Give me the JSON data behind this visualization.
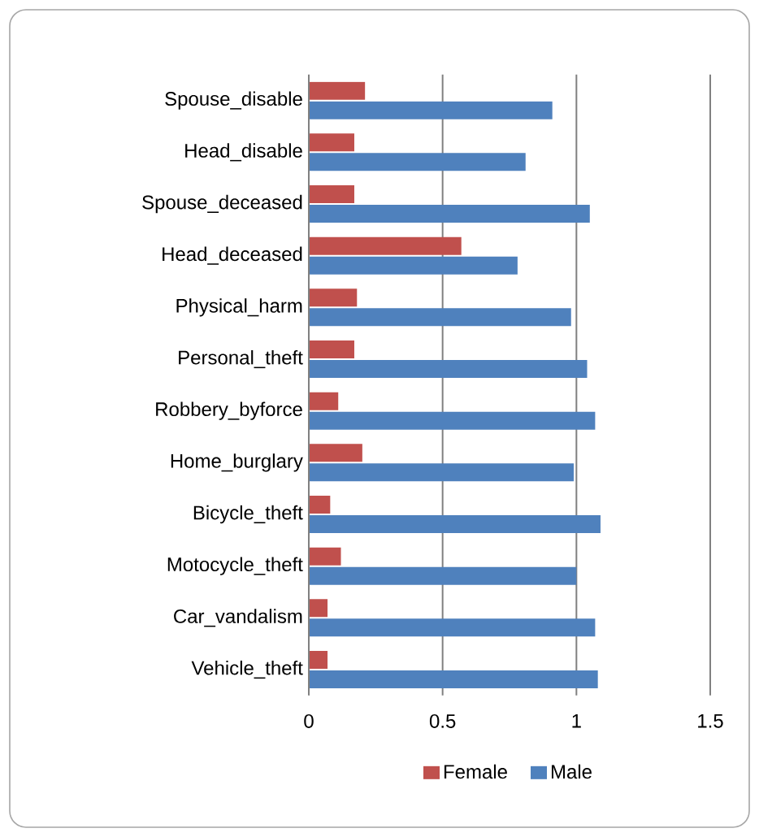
{
  "chart_data": {
    "type": "bar",
    "orientation": "horizontal",
    "categories": [
      "Spouse_disable",
      "Head_disable",
      "Spouse_deceased",
      "Head_deceased",
      "Physical_harm",
      "Personal_theft",
      "Robbery_byforce",
      "Home_burglary",
      "Bicycle_theft",
      "Motocycle_theft",
      "Car_vandalism",
      "Vehicle_theft"
    ],
    "series": [
      {
        "name": "Female",
        "color": "#c0504d",
        "values": [
          0.21,
          0.17,
          0.17,
          0.57,
          0.18,
          0.17,
          0.11,
          0.2,
          0.08,
          0.12,
          0.07,
          0.07
        ]
      },
      {
        "name": "Male",
        "color": "#4f81bd",
        "values": [
          0.91,
          0.81,
          1.05,
          0.78,
          0.98,
          1.04,
          1.07,
          0.99,
          1.09,
          1.0,
          1.07,
          1.08
        ]
      }
    ],
    "xlim": [
      0,
      1.5
    ],
    "xticks": [
      0,
      0.5,
      1,
      1.5
    ],
    "grid": "x",
    "legend": "bottom"
  }
}
